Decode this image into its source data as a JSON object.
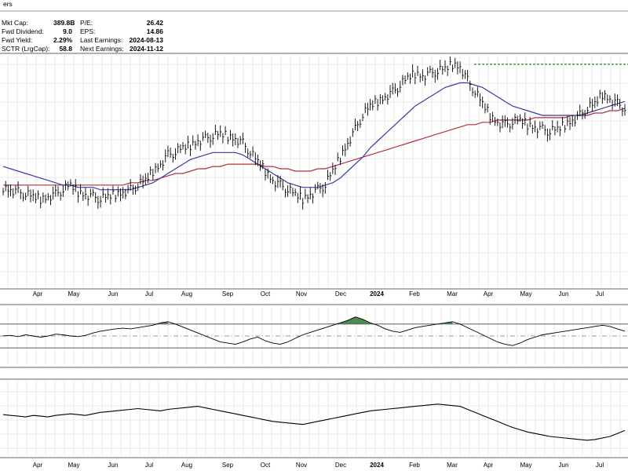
{
  "header": {
    "partial_title": "ers",
    "stats_left": [
      {
        "label": "Mkt Cap:",
        "value": "389.8B"
      },
      {
        "label": "Fwd Dividend:",
        "value": "9.0"
      },
      {
        "label": "Fwd Yield:",
        "value": "2.29%"
      },
      {
        "label": "SCTR (LrgCap):",
        "value": "58.8"
      }
    ],
    "stats_right": [
      {
        "label": "P/E:",
        "value": "26.42"
      },
      {
        "label": "EPS:",
        "value": "14.86"
      },
      {
        "label": "Last Earnings:",
        "value": "2024-08-13"
      },
      {
        "label": "Next Earnings:",
        "value": "2024-11-12"
      }
    ]
  },
  "colors": {
    "price_bars": "#000000",
    "ma_short": "#3b3b9e",
    "ma_long": "#b0303a",
    "resistance": "#2e7d2e",
    "osc_fill_up": "#4f8a52",
    "osc_fill_down": "#b5524f",
    "grid": "#d6d6d6",
    "frame": "#666666"
  },
  "chart_data": [
    {
      "type": "ohlc",
      "panel": "price",
      "x_labels": [
        "Apr",
        "May",
        "Jun",
        "Jul",
        "Aug",
        "Sep",
        "Oct",
        "Nov",
        "Dec",
        "2024",
        "Feb",
        "Mar",
        "Apr",
        "May",
        "Jun",
        "Jul"
      ],
      "y_range": [
        0,
        100
      ],
      "close": [
        43,
        42,
        41,
        40,
        39,
        38,
        39,
        40,
        42,
        44,
        41,
        40,
        39,
        38,
        39,
        40,
        41,
        42,
        44,
        46,
        50,
        53,
        57,
        58,
        60,
        61,
        63,
        64,
        65,
        66,
        65,
        64,
        62,
        58,
        54,
        50,
        46,
        44,
        42,
        40,
        38,
        40,
        42,
        44,
        50,
        56,
        62,
        68,
        74,
        78,
        80,
        82,
        84,
        87,
        90,
        92,
        91,
        92,
        93,
        94,
        96,
        95,
        89,
        84,
        79,
        74,
        71,
        70,
        71,
        72,
        70,
        69,
        68,
        67,
        68,
        70,
        72,
        74,
        77,
        79,
        83,
        81,
        79,
        77
      ],
      "ma_short": [
        52,
        51,
        50,
        49,
        48,
        47,
        46,
        45,
        44,
        44,
        43,
        43,
        43,
        42,
        42,
        42,
        42,
        42,
        43,
        44,
        45,
        47,
        49,
        51,
        53,
        55,
        56,
        57,
        58,
        58,
        58,
        58,
        57,
        55,
        53,
        51,
        49,
        47,
        45,
        44,
        43,
        43,
        43,
        44,
        45,
        47,
        50,
        53,
        56,
        60,
        63,
        66,
        69,
        72,
        75,
        78,
        80,
        82,
        84,
        86,
        87,
        88,
        88,
        87,
        86,
        84,
        82,
        80,
        78,
        77,
        76,
        75,
        74,
        74,
        74,
        74,
        74,
        74,
        75,
        76,
        77,
        78,
        79,
        80
      ],
      "ma_long": [
        44,
        44,
        44,
        44,
        44,
        44,
        44,
        44,
        44,
        44,
        44,
        44,
        44,
        44,
        44,
        44,
        44,
        45,
        45,
        46,
        46,
        47,
        48,
        49,
        49,
        50,
        51,
        51,
        52,
        52,
        53,
        53,
        53,
        53,
        53,
        52,
        52,
        51,
        51,
        50,
        50,
        50,
        51,
        51,
        52,
        53,
        54,
        55,
        56,
        57,
        58,
        59,
        60,
        61,
        62,
        63,
        64,
        65,
        66,
        67,
        68,
        69,
        70,
        70,
        71,
        71,
        72,
        72,
        72,
        72,
        72,
        73,
        73,
        73,
        73,
        73,
        74,
        74,
        74,
        75,
        75,
        76,
        76,
        77
      ],
      "resistance_level": 96
    },
    {
      "type": "line",
      "panel": "oscillator",
      "x_labels": [],
      "y_range": [
        0,
        100
      ],
      "upper_band": 70,
      "lower_band": 30,
      "midline": 50,
      "values": [
        50,
        51,
        49,
        52,
        50,
        48,
        50,
        53,
        52,
        50,
        49,
        51,
        55,
        58,
        60,
        62,
        63,
        62,
        64,
        66,
        68,
        72,
        74,
        70,
        65,
        60,
        55,
        50,
        45,
        40,
        38,
        36,
        40,
        45,
        48,
        42,
        38,
        36,
        40,
        46,
        52,
        56,
        60,
        64,
        68,
        72,
        76,
        82,
        78,
        72,
        68,
        62,
        58,
        56,
        60,
        64,
        66,
        68,
        70,
        72,
        74,
        70,
        64,
        58,
        52,
        46,
        40,
        36,
        34,
        38,
        44,
        48,
        52,
        54,
        56,
        58,
        60,
        62,
        64,
        66,
        68,
        66,
        62,
        58
      ]
    },
    {
      "type": "line",
      "panel": "relative_strength",
      "x_labels": [
        "Apr",
        "May",
        "Jun",
        "Jul",
        "Aug",
        "Sep",
        "Oct",
        "Nov",
        "Dec",
        "2024",
        "Feb",
        "Mar",
        "Apr",
        "May",
        "Jun",
        "Jul"
      ],
      "y_range": [
        0,
        100
      ],
      "values": [
        55,
        54,
        53,
        52,
        54,
        53,
        52,
        54,
        55,
        56,
        55,
        54,
        56,
        58,
        59,
        60,
        61,
        62,
        63,
        62,
        61,
        60,
        62,
        63,
        64,
        65,
        66,
        64,
        62,
        60,
        58,
        56,
        54,
        52,
        50,
        48,
        46,
        45,
        44,
        43,
        42,
        44,
        46,
        48,
        50,
        52,
        54,
        56,
        58,
        60,
        61,
        62,
        63,
        64,
        65,
        66,
        67,
        68,
        69,
        68,
        67,
        66,
        62,
        58,
        54,
        50,
        46,
        42,
        38,
        35,
        32,
        30,
        28,
        26,
        25,
        24,
        23,
        22,
        21,
        22,
        24,
        26,
        30,
        34
      ]
    }
  ]
}
